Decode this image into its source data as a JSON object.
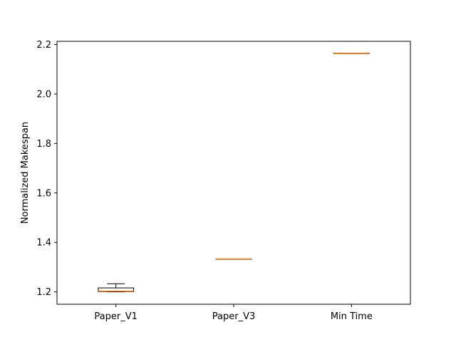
{
  "chart_data": {
    "type": "box",
    "title": "",
    "xlabel": "",
    "ylabel": "Normalized Makespan",
    "categories": [
      "Paper_V1",
      "Paper_V3",
      "Min Time"
    ],
    "ylim": [
      1.15,
      2.213
    ],
    "yticks": [
      1.2,
      1.4,
      1.6,
      1.8,
      2.0,
      2.2
    ],
    "ytick_labels": [
      "1.2",
      "1.4",
      "1.6",
      "1.8",
      "2.0",
      "2.2"
    ],
    "grid": false,
    "boxes": [
      {
        "category": "Paper_V1",
        "whisker_low": 1.2,
        "q1": 1.201,
        "median": 1.203,
        "q3": 1.216,
        "whisker_high": 1.233
      },
      {
        "category": "Paper_V3",
        "whisker_low": 1.333,
        "q1": 1.333,
        "median": 1.333,
        "q3": 1.333,
        "whisker_high": 1.333
      },
      {
        "category": "Min Time",
        "whisker_low": 2.165,
        "q1": 2.165,
        "median": 2.165,
        "q3": 2.165,
        "whisker_high": 2.165
      }
    ],
    "colors": {
      "box": "#000000",
      "median": "#ff7f0e",
      "axes": "#000000"
    }
  }
}
